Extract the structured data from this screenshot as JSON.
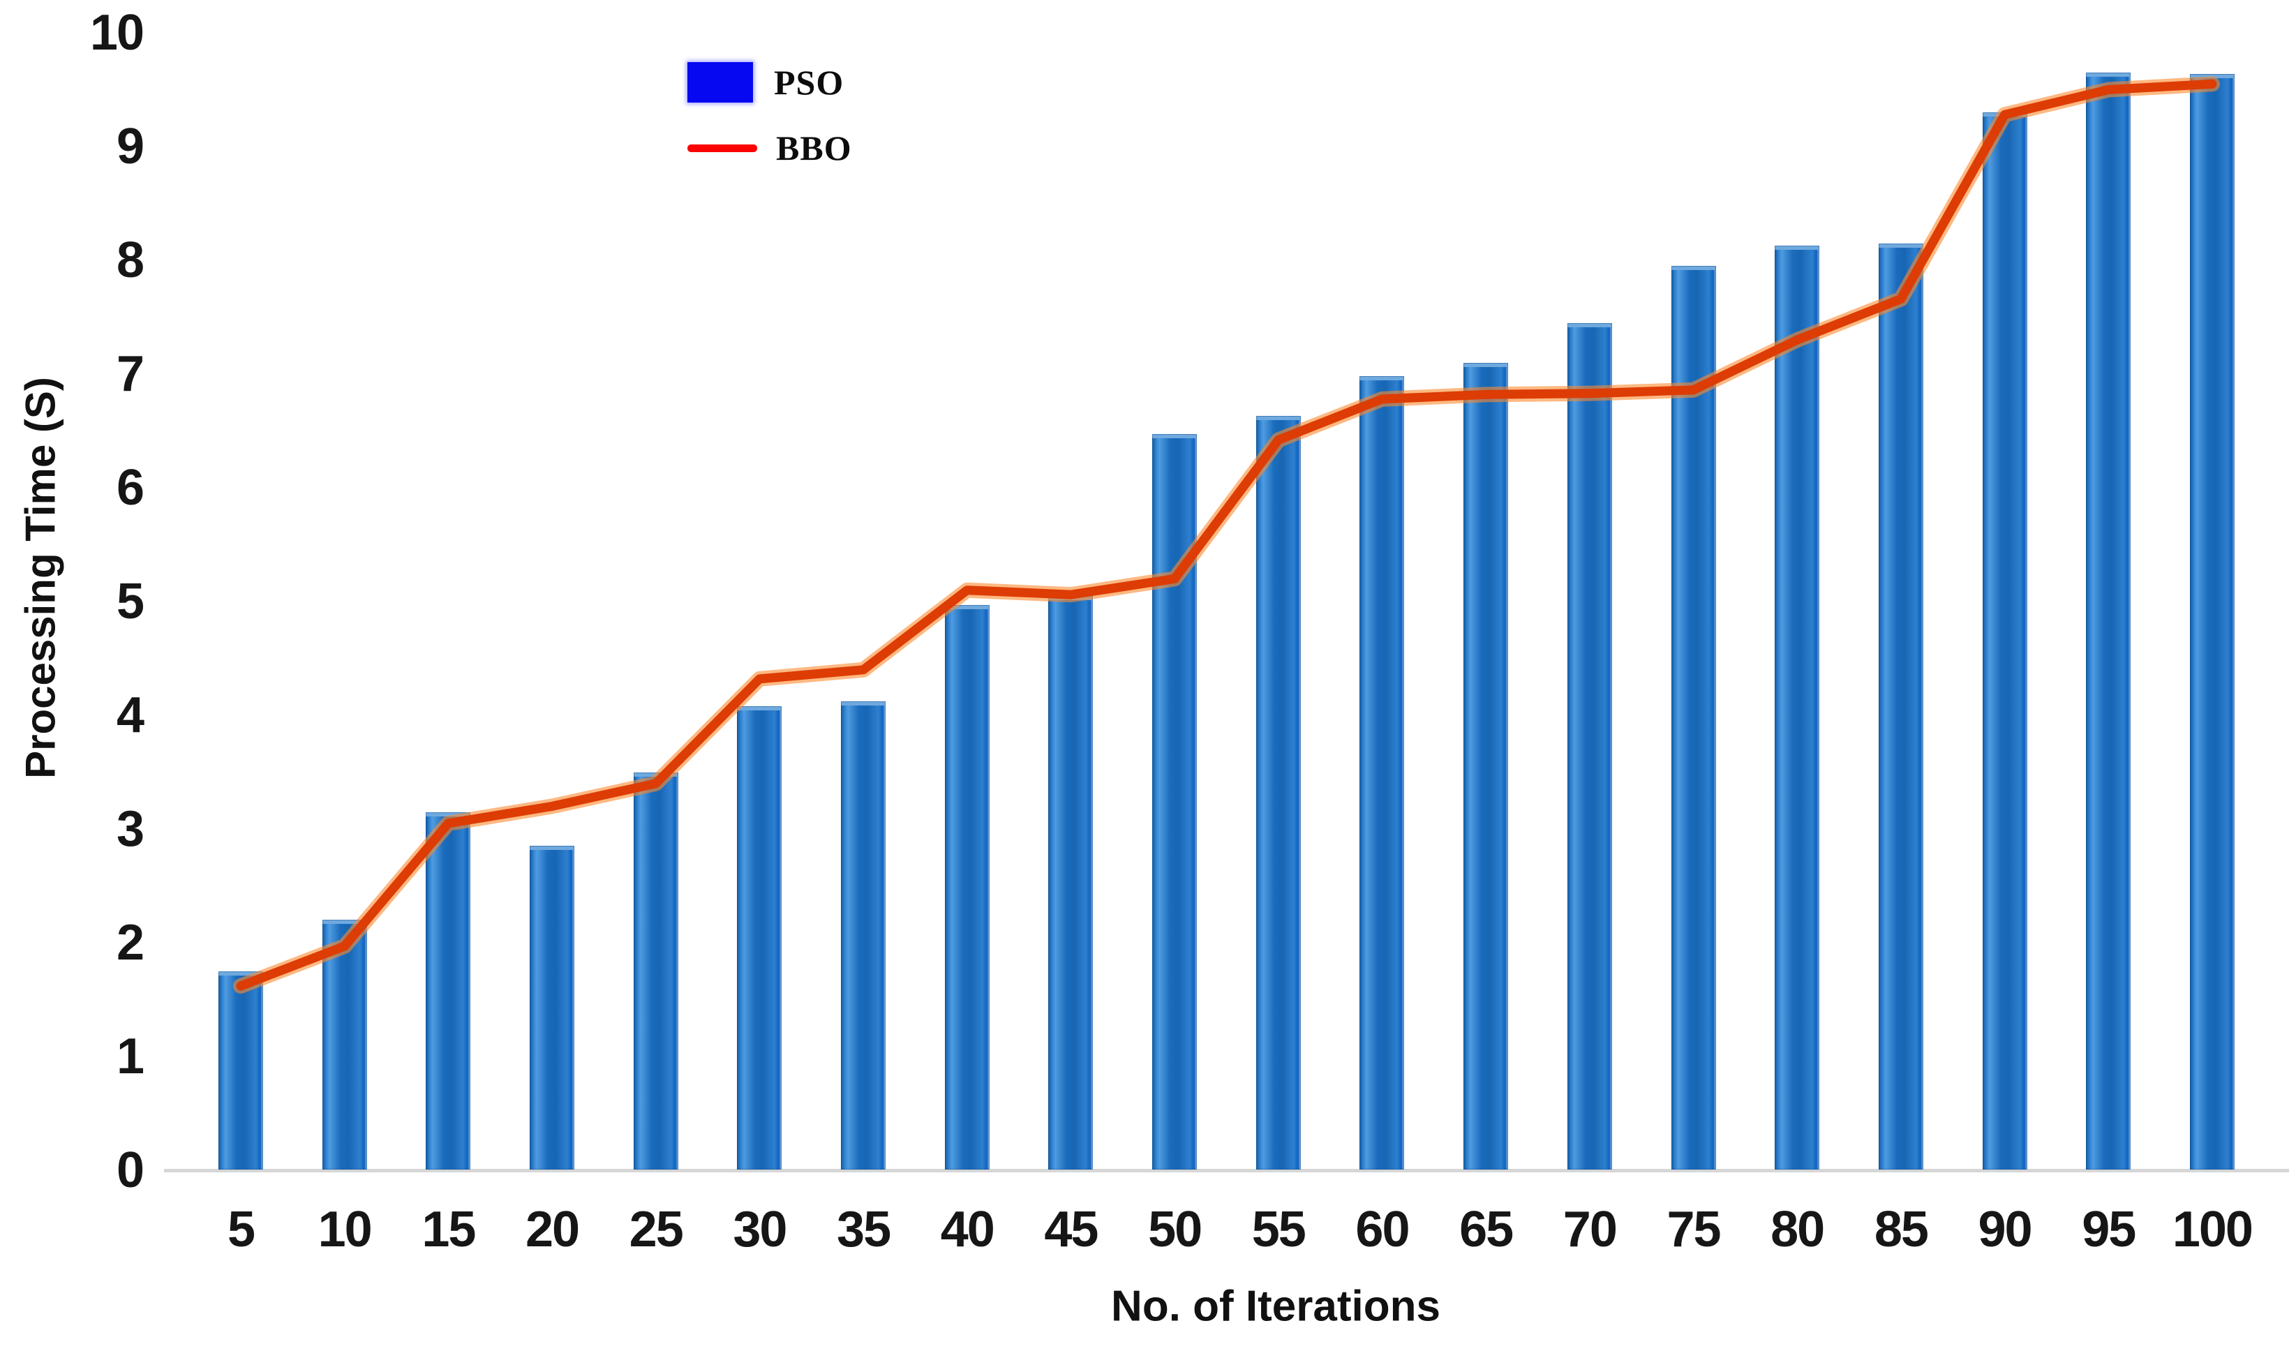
{
  "figure": {
    "y_axis": {
      "title": "Processing Time (S)",
      "ticks": [
        0,
        1,
        2,
        3,
        4,
        5,
        6,
        7,
        8,
        9,
        10
      ]
    },
    "x_axis": {
      "title": "No. of Iterations"
    },
    "legend": [
      {
        "label": "PSO",
        "swatch": "blue-box",
        "color": "#0508f0"
      },
      {
        "label": "BBO",
        "swatch": "red-line",
        "color": "#fb0404"
      }
    ]
  },
  "chart_data": {
    "type": "bar",
    "title": "",
    "xlabel": "No. of Iterations",
    "ylabel": "Processing Time (S)",
    "ylim": [
      0,
      10
    ],
    "grid": false,
    "legend_position": "top-left-inside",
    "categories": [
      5,
      10,
      15,
      20,
      25,
      30,
      35,
      40,
      45,
      50,
      55,
      60,
      65,
      70,
      75,
      80,
      85,
      90,
      95,
      100
    ],
    "series": [
      {
        "name": "PSO",
        "type": "bar",
        "color": "#1d6fc2",
        "values": [
          1.75,
          2.2,
          3.15,
          2.85,
          3.5,
          4.08,
          4.12,
          4.97,
          5.05,
          6.47,
          6.63,
          6.98,
          7.1,
          7.45,
          7.95,
          8.13,
          8.15,
          9.3,
          9.65,
          9.64
        ]
      },
      {
        "name": "BBO",
        "type": "line",
        "color": "#e04104",
        "values": [
          1.62,
          1.97,
          3.05,
          3.2,
          3.4,
          4.32,
          4.4,
          5.1,
          5.06,
          5.2,
          6.42,
          6.78,
          6.82,
          6.83,
          6.86,
          7.3,
          7.66,
          9.28,
          9.5,
          9.55
        ]
      }
    ]
  }
}
